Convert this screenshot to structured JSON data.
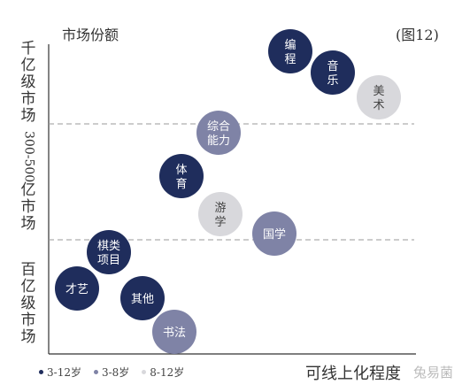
{
  "chart_data": {
    "type": "scatter",
    "title": "(图12)",
    "ylabel": "市场份额",
    "xlabel": "可线上化程度",
    "y_bands": [
      "千亿级市场",
      "300-500亿市场",
      "百亿级市场"
    ],
    "series": [
      {
        "name": "3-12岁",
        "color": "#1f2d5c"
      },
      {
        "name": "3-8岁",
        "color": "#7f83a6"
      },
      {
        "name": "8-12岁",
        "color": "#d8d8dc"
      }
    ],
    "points": [
      {
        "label": "编程",
        "series": 0
      },
      {
        "label": "音乐",
        "series": 0
      },
      {
        "label": "美术",
        "series": 2
      },
      {
        "label": "综合能力",
        "series": 1
      },
      {
        "label": "体育",
        "series": 0
      },
      {
        "label": "游学",
        "series": 2
      },
      {
        "label": "国学",
        "series": 1
      },
      {
        "label": "棋类项目",
        "series": 0
      },
      {
        "label": "才艺",
        "series": 0
      },
      {
        "label": "其他",
        "series": 0
      },
      {
        "label": "书法",
        "series": 1
      }
    ]
  },
  "watermark": "兔易菌"
}
